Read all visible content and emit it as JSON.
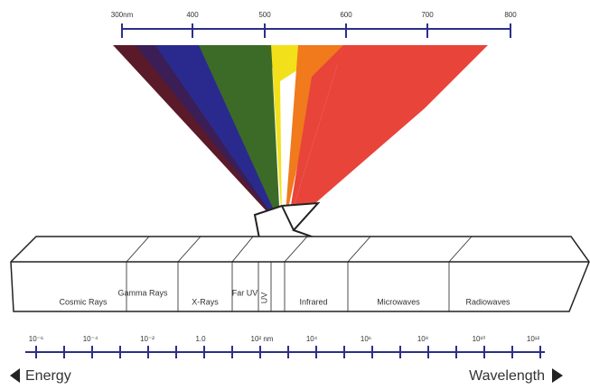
{
  "top_scale": {
    "labels": [
      "300nm",
      "400",
      "500",
      "600",
      "700",
      "800"
    ]
  },
  "bands": [
    "Cosmic Rays",
    "Gamma Rays",
    "X-Rays",
    "Far UV",
    "UV",
    "Infrared",
    "Microwaves",
    "Radiowaves"
  ],
  "bottom_scale": {
    "labels": [
      "10⁻⁶",
      "10⁻⁴",
      "10⁻²",
      "1.0",
      "10² nm",
      "10⁴",
      "10⁶",
      "10⁸",
      "10¹⁰",
      "10¹²"
    ]
  },
  "arrows": {
    "left": "Energy",
    "right": "Wavelength"
  }
}
